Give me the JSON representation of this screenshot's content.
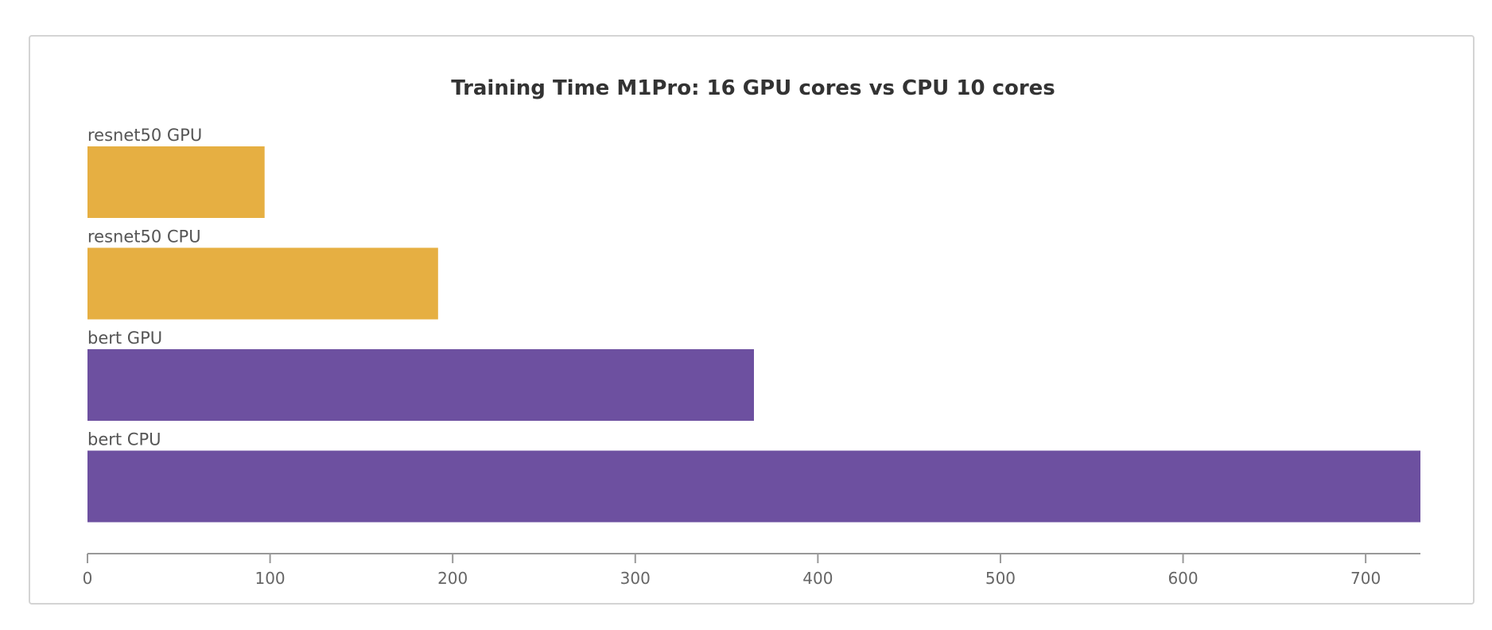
{
  "chart_data": {
    "type": "bar",
    "orientation": "horizontal",
    "title": "Training Time M1Pro: 16 GPU cores vs CPU 10 cores",
    "xlabel": "",
    "ylabel": "",
    "xlim": [
      0,
      730
    ],
    "xticks": [
      0,
      100,
      200,
      300,
      400,
      500,
      600,
      700
    ],
    "grid": false,
    "categories": [
      "resnet50 GPU",
      "resnet50 CPU",
      "bert GPU",
      "bert CPU"
    ],
    "values": [
      97,
      192,
      365,
      730
    ],
    "bar_colors": [
      "#E6AF42",
      "#E6AF42",
      "#6D50A0",
      "#6D50A0"
    ]
  }
}
